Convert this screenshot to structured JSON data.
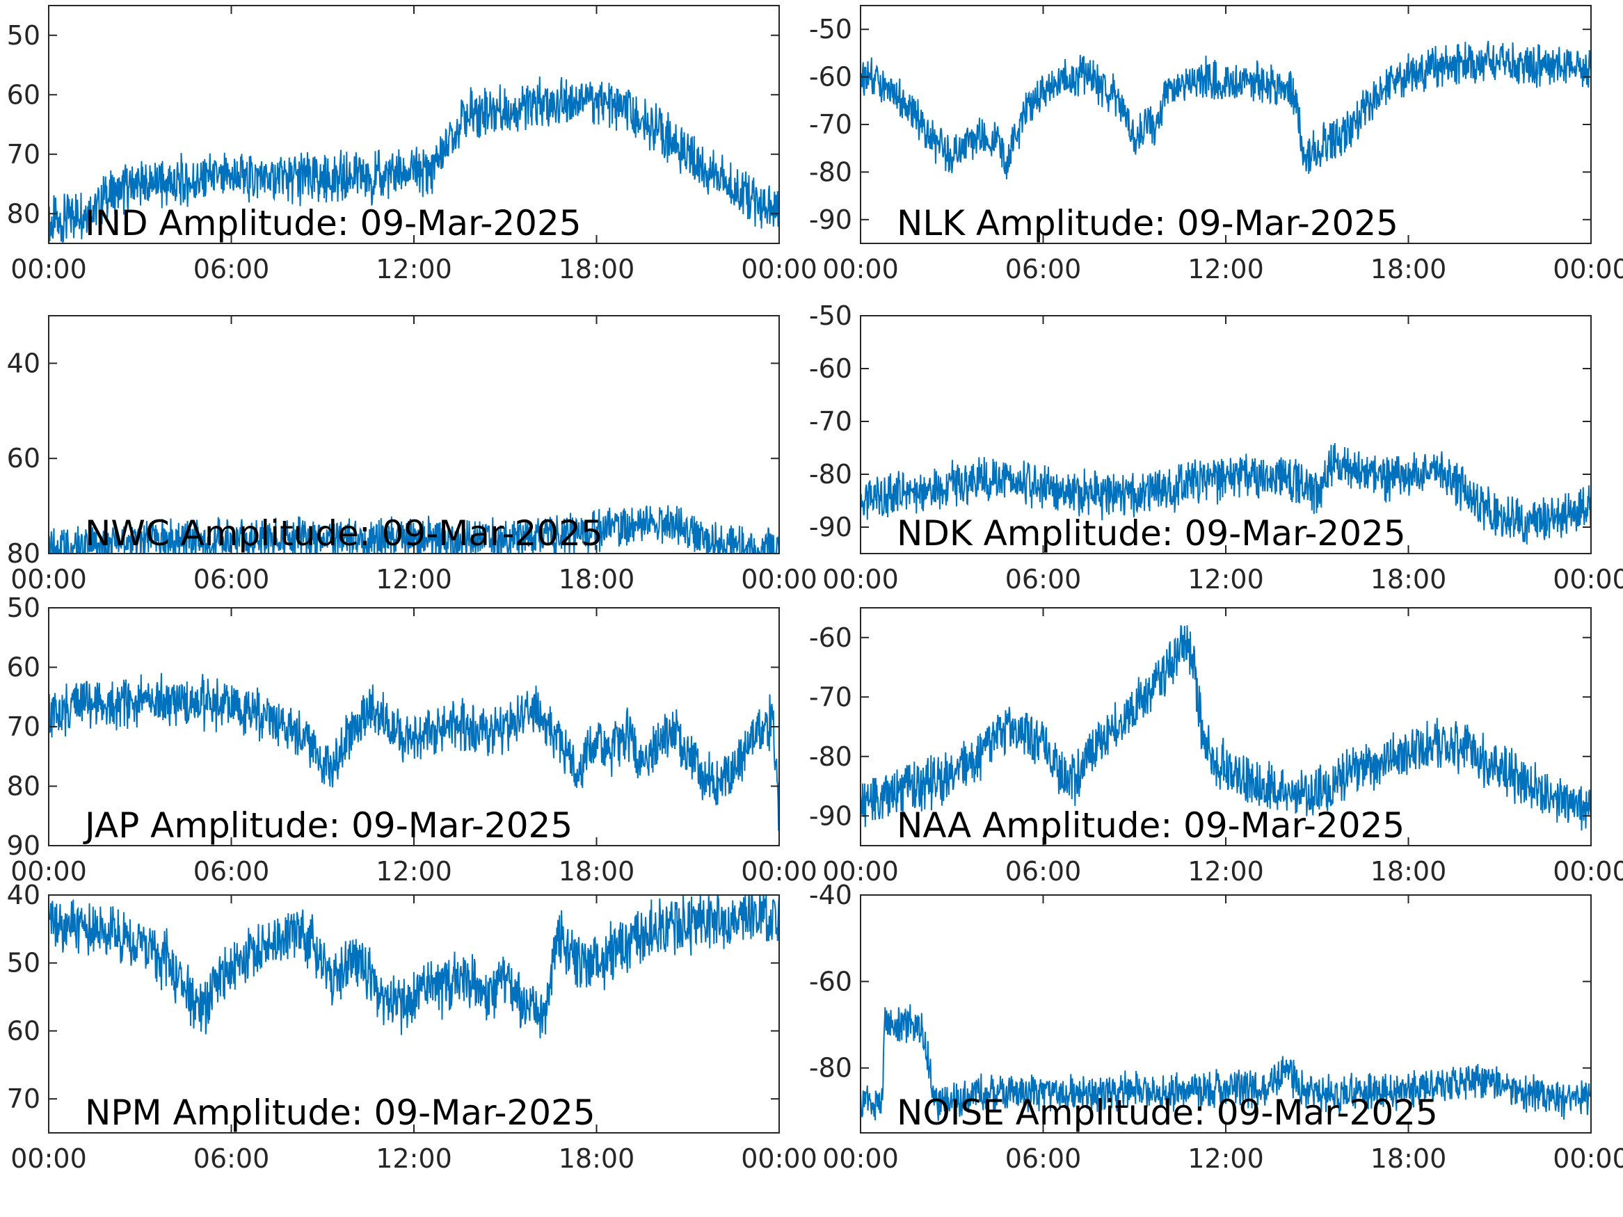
{
  "figure": {
    "trace_color": "#0072BD",
    "axes_color": "#262626",
    "background": "#ffffff"
  },
  "chart_data": [
    {
      "type": "line",
      "title": "IND Amplitude: 09-Mar-2025",
      "xlabel": "",
      "ylabel": "",
      "xticks": [
        "00:00",
        "06:00",
        "12:00",
        "18:00",
        "00:00"
      ],
      "yticks": [
        "50",
        "60",
        "70",
        "80"
      ],
      "ylim": [
        -85,
        -45
      ],
      "xlim_hours": [
        0,
        24
      ],
      "grid": false,
      "series": [
        {
          "x_hours": [
            0,
            0.5,
            1,
            1.5,
            2,
            2.5,
            3,
            4,
            5,
            6,
            7,
            8,
            9,
            10,
            11,
            12,
            12.5,
            12.8,
            13.2,
            13.6,
            14,
            15,
            16,
            17,
            17.5,
            18,
            18.5,
            19,
            20,
            21,
            22,
            23,
            23.5,
            24
          ],
          "values": [
            -82,
            -81,
            -80,
            -79,
            -77,
            -76,
            -75,
            -75,
            -74,
            -74,
            -74,
            -74,
            -74,
            -74,
            -74,
            -73,
            -73,
            -71,
            -67,
            -64,
            -63,
            -62.5,
            -62,
            -61,
            -60.5,
            -61,
            -62,
            -63,
            -66,
            -70,
            -74,
            -77,
            -79,
            -81
          ]
        }
      ]
    },
    {
      "type": "line",
      "title": "NLK Amplitude: 09-Mar-2025",
      "xlabel": "",
      "ylabel": "",
      "xticks": [
        "00:00",
        "06:00",
        "12:00",
        "18:00",
        "00:00"
      ],
      "yticks": [
        "-50",
        "-60",
        "-70",
        "-80",
        "-90"
      ],
      "ylim": [
        -95,
        -45
      ],
      "xlim_hours": [
        0,
        24
      ],
      "grid": false,
      "series": [
        {
          "x_hours": [
            0,
            0.5,
            1,
            1.5,
            2,
            2.5,
            3,
            3.5,
            4,
            4.5,
            4.8,
            5,
            5.5,
            6,
            6.5,
            7,
            7.5,
            8,
            8.5,
            8.8,
            9.1,
            9.4,
            9.7,
            10,
            10.5,
            11,
            12,
            13,
            14,
            14.3,
            14.6,
            15,
            15.5,
            16,
            16.5,
            17,
            17.5,
            18,
            19,
            20,
            21,
            22,
            23,
            24
          ],
          "values": [
            -60,
            -61,
            -63,
            -66,
            -70,
            -74,
            -77,
            -74,
            -72,
            -74,
            -79,
            -73,
            -67,
            -63,
            -61,
            -59.5,
            -60,
            -62,
            -65,
            -70,
            -74,
            -68,
            -72,
            -62,
            -61,
            -60,
            -61,
            -61,
            -62,
            -65,
            -78,
            -75,
            -73,
            -71,
            -67,
            -64,
            -61,
            -59,
            -58,
            -57.5,
            -57,
            -57.5,
            -57.5,
            -58.5
          ]
        }
      ]
    },
    {
      "type": "line",
      "title": "NWC Amplitude: 09-Mar-2025",
      "xlabel": "",
      "ylabel": "",
      "xticks": [
        "00:00",
        "06:00",
        "12:00",
        "18:00",
        "00:00"
      ],
      "yticks": [
        "40",
        "60",
        "80"
      ],
      "ylim": [
        -80,
        -30
      ],
      "xlim_hours": [
        0,
        24
      ],
      "grid": false,
      "series": [
        {
          "x_hours": [
            0,
            2,
            4,
            6,
            8,
            10,
            12,
            14,
            16,
            17,
            18,
            19,
            20,
            20.5,
            21,
            22,
            23,
            24
          ],
          "values": [
            -79,
            -78,
            -77,
            -77,
            -77,
            -77,
            -77,
            -77,
            -77,
            -76,
            -75,
            -74,
            -73,
            -74,
            -76,
            -78,
            -78.5,
            -79
          ]
        }
      ]
    },
    {
      "type": "line",
      "title": "NDK Amplitude: 09-Mar-2025",
      "xlabel": "",
      "ylabel": "",
      "xticks": [
        "00:00",
        "06:00",
        "12:00",
        "18:00",
        "00:00"
      ],
      "yticks": [
        "-50",
        "-60",
        "-70",
        "-80",
        "-90"
      ],
      "ylim": [
        -95,
        -50
      ],
      "xlim_hours": [
        0,
        24
      ],
      "grid": false,
      "series": [
        {
          "x_hours": [
            0,
            1,
            2,
            3,
            4,
            5,
            6,
            7,
            8,
            9,
            10,
            11,
            12,
            13,
            14,
            14.5,
            15,
            15.5,
            16,
            17,
            18,
            19,
            20,
            21,
            22,
            23,
            24
          ],
          "values": [
            -85,
            -84,
            -83,
            -82,
            -81,
            -81,
            -82,
            -83,
            -84,
            -84,
            -83,
            -81,
            -81,
            -80,
            -81,
            -82,
            -84,
            -78,
            -79,
            -81,
            -80,
            -79,
            -84,
            -88,
            -89,
            -88,
            -86
          ]
        }
      ]
    },
    {
      "type": "line",
      "title": "JAP Amplitude: 09-Mar-2025",
      "xlabel": "",
      "ylabel": "",
      "xticks": [
        "00:00",
        "06:00",
        "12:00",
        "18:00",
        "00:00"
      ],
      "yticks": [
        "50",
        "60",
        "70",
        "80",
        "90"
      ],
      "ylim": [
        -90,
        -50
      ],
      "xlim_hours": [
        0,
        24
      ],
      "grid": false,
      "series": [
        {
          "x_hours": [
            0,
            1,
            2,
            3,
            4,
            5,
            6,
            7,
            8,
            8.5,
            9,
            9.3,
            9.6,
            10,
            10.5,
            11,
            11.5,
            12,
            12.5,
            13,
            13.5,
            14,
            14.5,
            15,
            15.5,
            16,
            16.5,
            17,
            17.3,
            17.6,
            18,
            18.5,
            19,
            19.5,
            20,
            20.5,
            21,
            21.5,
            22,
            22.5,
            23,
            23.5,
            23.8,
            24
          ],
          "values": [
            -68,
            -66.5,
            -66,
            -66,
            -65.5,
            -66,
            -66.5,
            -68,
            -70,
            -72,
            -75,
            -77,
            -73,
            -70,
            -67,
            -69,
            -71,
            -72,
            -71,
            -70,
            -69,
            -71,
            -72,
            -70,
            -68,
            -67,
            -70,
            -74,
            -78,
            -75,
            -73,
            -74,
            -71,
            -76,
            -73,
            -71,
            -75,
            -78,
            -80,
            -77,
            -73,
            -70,
            -69,
            -85
          ]
        }
      ]
    },
    {
      "type": "line",
      "title": "NAA Amplitude: 09-Mar-2025",
      "xlabel": "",
      "ylabel": "",
      "xticks": [
        "00:00",
        "06:00",
        "12:00",
        "18:00",
        "00:00"
      ],
      "yticks": [
        "-60",
        "-70",
        "-80",
        "-90"
      ],
      "ylim": [
        -95,
        -55
      ],
      "xlim_hours": [
        0,
        24
      ],
      "grid": false,
      "series": [
        {
          "x_hours": [
            0,
            1,
            2,
            3,
            4,
            4.5,
            5,
            5.5,
            6,
            6.5,
            7,
            7.5,
            8,
            8.5,
            9,
            9.5,
            10,
            10.3,
            10.6,
            10.9,
            11.2,
            11.5,
            12,
            12.5,
            13,
            14,
            15,
            16,
            17,
            18,
            19,
            20,
            21,
            22,
            23,
            24
          ],
          "values": [
            -88,
            -86,
            -85,
            -83,
            -80,
            -76,
            -75,
            -76,
            -78,
            -82,
            -84,
            -80,
            -77,
            -74,
            -72,
            -69,
            -66,
            -64,
            -61,
            -63,
            -75,
            -80,
            -82,
            -84,
            -85,
            -86,
            -86,
            -83,
            -81,
            -79,
            -78,
            -79,
            -82,
            -85,
            -87,
            -89
          ]
        }
      ]
    },
    {
      "type": "line",
      "title": "NPM Amplitude: 09-Mar-2025",
      "xlabel": "",
      "ylabel": "",
      "xticks": [
        "00:00",
        "06:00",
        "12:00",
        "18:00",
        "00:00"
      ],
      "yticks": [
        "40",
        "50",
        "60",
        "70"
      ],
      "ylim": [
        -75,
        -40
      ],
      "xlim_hours": [
        0,
        24
      ],
      "grid": false,
      "series": [
        {
          "x_hours": [
            0,
            1,
            2,
            3,
            4,
            4.5,
            5,
            5.5,
            6,
            6.5,
            7,
            7.5,
            8,
            8.5,
            9,
            9.3,
            9.6,
            10,
            10.5,
            11,
            11.5,
            12,
            12.5,
            13,
            13.5,
            14,
            14.5,
            15,
            15.5,
            16,
            16.3,
            16.7,
            17,
            17.5,
            18,
            19,
            20,
            21,
            22,
            23,
            24
          ],
          "values": [
            -43.5,
            -44.5,
            -45.5,
            -47,
            -50,
            -54,
            -57,
            -54,
            -50,
            -49,
            -48,
            -46.5,
            -46,
            -46,
            -50,
            -53,
            -52,
            -49,
            -51,
            -55,
            -56,
            -55,
            -53,
            -54,
            -52,
            -53,
            -55,
            -52,
            -56,
            -57,
            -59,
            -45,
            -48,
            -51,
            -50,
            -47,
            -45,
            -44.5,
            -44,
            -43.5,
            -43
          ]
        }
      ]
    },
    {
      "type": "line",
      "title": "NOISE Amplitude: 09-Mar-2025",
      "xlabel": "",
      "ylabel": "",
      "xticks": [
        "00:00",
        "06:00",
        "12:00",
        "18:00",
        "00:00"
      ],
      "yticks": [
        "-40",
        "-60",
        "-80"
      ],
      "ylim": [
        -95,
        -40
      ],
      "xlim_hours": [
        0,
        24
      ],
      "grid": false,
      "series": [
        {
          "x_hours": [
            0,
            0.5,
            0.7,
            0.8,
            1,
            1.5,
            2,
            2.5,
            2.6,
            3,
            4,
            5,
            6,
            7,
            8,
            9,
            10,
            11,
            12,
            13,
            13.5,
            14,
            14.5,
            15,
            16,
            17,
            18,
            19,
            20,
            21,
            22,
            23,
            24
          ],
          "values": [
            -89,
            -88,
            -88,
            -70.5,
            -70,
            -70,
            -70,
            -88,
            -88,
            -87,
            -86,
            -86,
            -85,
            -86,
            -86,
            -85,
            -86,
            -85,
            -85,
            -85,
            -84,
            -80,
            -85,
            -86,
            -86,
            -85,
            -85,
            -84,
            -83,
            -84,
            -86,
            -87,
            -87
          ]
        }
      ]
    }
  ]
}
